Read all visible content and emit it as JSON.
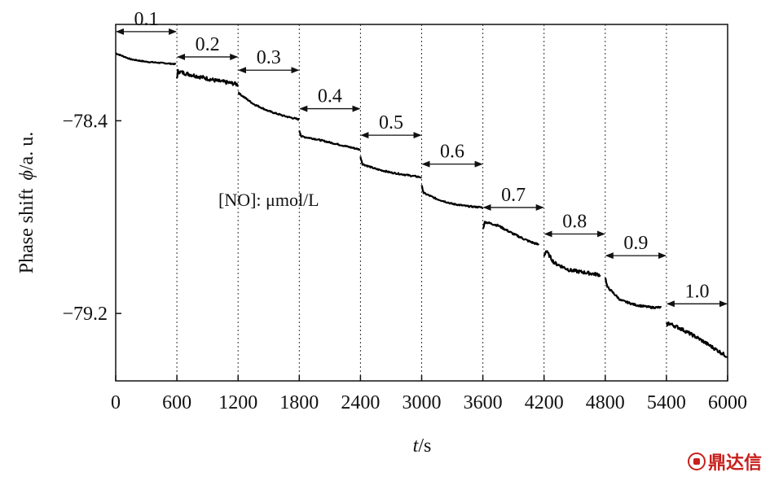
{
  "chart_data": {
    "type": "line",
    "title": "",
    "xlabel_italic": "t",
    "xlabel_unit": "/s",
    "ylabel": "Phase shift",
    "ylabel_symbol": "ϕ",
    "ylabel_unit": "/a. u.",
    "annotation": "[NO]: μmol/L",
    "xlim": [
      0,
      6000
    ],
    "ylim": [
      -79.48,
      -78.0
    ],
    "x_ticks": [
      0,
      600,
      1200,
      1800,
      2400,
      3000,
      3600,
      4200,
      4800,
      5400,
      6000
    ],
    "x_tick_labels": [
      "0",
      "600",
      "1200",
      "1800",
      "2400",
      "3000",
      "3600",
      "4200",
      "4800",
      "5400",
      "6000"
    ],
    "y_ticks": [
      -78.4,
      -79.2
    ],
    "y_tick_labels": [
      "−78.4",
      "−79.2"
    ],
    "grid": "vertical dashed at injection times",
    "concentrations": [
      {
        "label": "0.1",
        "x_start": 0,
        "x_end": 600
      },
      {
        "label": "0.2",
        "x_start": 600,
        "x_end": 1200
      },
      {
        "label": "0.3",
        "x_start": 1200,
        "x_end": 1800
      },
      {
        "label": "0.4",
        "x_start": 1800,
        "x_end": 2400
      },
      {
        "label": "0.5",
        "x_start": 2400,
        "x_end": 3000
      },
      {
        "label": "0.6",
        "x_start": 3000,
        "x_end": 3600
      },
      {
        "label": "0.7",
        "x_start": 3600,
        "x_end": 4200
      },
      {
        "label": "0.8",
        "x_start": 4200,
        "x_end": 4800
      },
      {
        "label": "0.9",
        "x_start": 4800,
        "x_end": 5400
      },
      {
        "label": "1.0",
        "x_start": 5400,
        "x_end": 6000
      }
    ],
    "series": [
      {
        "segments": [
          {
            "x": [
              0,
              60,
              150,
              300,
              450,
              590
            ],
            "y": [
              -78.12,
              -78.13,
              -78.145,
              -78.155,
              -78.16,
              -78.165
            ],
            "noise": 0.002
          },
          {
            "x": [
              600,
              610,
              700,
              850,
              1000,
              1150,
              1200
            ],
            "y": [
              -78.225,
              -78.195,
              -78.205,
              -78.22,
              -78.235,
              -78.245,
              -78.25
            ],
            "noise": 0.008
          },
          {
            "x": [
              1200,
              1220,
              1350,
              1500,
              1650,
              1800
            ],
            "y": [
              -78.28,
              -78.29,
              -78.33,
              -78.36,
              -78.38,
              -78.395
            ],
            "noise": 0.003
          },
          {
            "x": [
              1800,
              1820,
              1950,
              2100,
              2250,
              2400
            ],
            "y": [
              -78.44,
              -78.465,
              -78.475,
              -78.49,
              -78.505,
              -78.52
            ],
            "noise": 0.003
          },
          {
            "x": [
              2400,
              2420,
              2550,
              2700,
              2850,
              3000
            ],
            "y": [
              -78.55,
              -78.58,
              -78.6,
              -78.615,
              -78.625,
              -78.635
            ],
            "noise": 0.003
          },
          {
            "x": [
              3000,
              3020,
              3150,
              3300,
              3450,
              3600
            ],
            "y": [
              -78.67,
              -78.7,
              -78.725,
              -78.745,
              -78.755,
              -78.76
            ],
            "noise": 0.003
          },
          {
            "x": [
              3600,
              3620,
              3750,
              3900,
              4050,
              4150
            ],
            "y": [
              -78.85,
              -78.82,
              -78.835,
              -78.87,
              -78.9,
              -78.915
            ],
            "noise": 0.004
          },
          {
            "x": [
              4200,
              4220,
              4300,
              4450,
              4600,
              4750
            ],
            "y": [
              -78.96,
              -78.94,
              -78.99,
              -79.02,
              -79.03,
              -79.04
            ],
            "noise": 0.007
          },
          {
            "x": [
              4800,
              4820,
              4950,
              5100,
              5250,
              5350
            ],
            "y": [
              -79.05,
              -79.09,
              -79.145,
              -79.165,
              -79.175,
              -79.175
            ],
            "noise": 0.004
          },
          {
            "x": [
              5400,
              5420,
              5550,
              5700,
              5850,
              6000
            ],
            "y": [
              -79.25,
              -79.24,
              -79.265,
              -79.3,
              -79.34,
              -79.38
            ],
            "noise": 0.007
          }
        ]
      }
    ]
  },
  "watermark": {
    "text": "鼎达信",
    "color": "#c8201c"
  }
}
